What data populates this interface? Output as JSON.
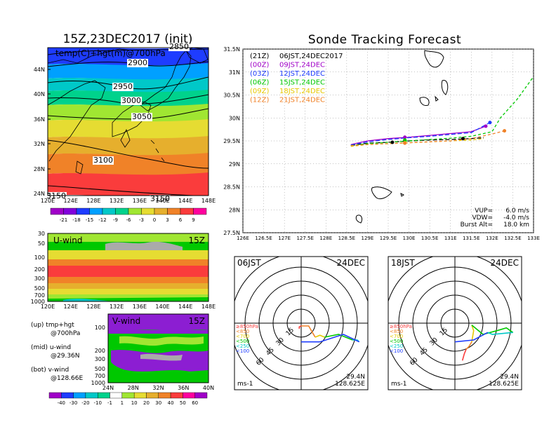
{
  "left_title": "15Z,23DEC2017 (init)",
  "right_title": "Sonde Tracking Forecast",
  "map_panel": {
    "label": "temp(C)+hgt(m)@700hPa",
    "x_ticks": [
      "120E",
      "124E",
      "128E",
      "132E",
      "136E",
      "140E",
      "144E",
      "148E"
    ],
    "y_ticks": [
      "44N",
      "40N",
      "36N",
      "32N",
      "28N",
      "24N"
    ],
    "contour_labels": [
      "2850",
      "2900",
      "2950",
      "3000",
      "3050",
      "3100",
      "3150",
      "3150"
    ],
    "colorbar_labels": [
      "-21",
      "-18",
      "-15",
      "-12",
      "-9",
      "-6",
      "-3",
      "0",
      "3",
      "6",
      "9"
    ],
    "colorbar_colors": [
      "#a000c8",
      "#8200dc",
      "#1e3cff",
      "#00a0ff",
      "#00c8c8",
      "#00d28c",
      "#a0e632",
      "#e6dc32",
      "#e6af2d",
      "#f08228",
      "#fa3c3c",
      "#ff009e"
    ]
  },
  "uwind_panel": {
    "label": "U-wind",
    "time": "15Z",
    "y_ticks": [
      "30",
      "50",
      "100",
      "200",
      "300",
      "500",
      "700",
      "1000"
    ],
    "x_ticks": [
      "120E",
      "124E",
      "128E",
      "132E",
      "136E",
      "140E",
      "144E",
      "148E"
    ]
  },
  "vwind_panel": {
    "label": "V-wind",
    "time": "15Z",
    "y_ticks": [
      "100",
      "200",
      "300",
      "500",
      "700",
      "1000"
    ],
    "x_ticks": [
      "24N",
      "28N",
      "32N",
      "36N",
      "40N"
    ]
  },
  "wind_colorbar": {
    "labels": [
      "-40",
      "-30",
      "-20",
      "-10",
      "-1",
      "1",
      "10",
      "20",
      "30",
      "40",
      "50",
      "60"
    ],
    "colors": [
      "#a000c8",
      "#1e3cff",
      "#00a0ff",
      "#00c8c8",
      "#00d28c",
      "#ffffff",
      "#a0e632",
      "#e6dc32",
      "#e6af2d",
      "#f08228",
      "#fa3c3c",
      "#ff009e",
      "#a000c8"
    ]
  },
  "notes": [
    {
      "line1": "(up) tmp+hgt",
      "line2": "@700hPa"
    },
    {
      "line1": "(mid) u-wind",
      "line2": "@29.36N"
    },
    {
      "line1": "(bot) v-wind",
      "line2": "@128.66E"
    }
  ],
  "tracking_panel": {
    "x_ticks": [
      "126E",
      "126.5E",
      "127E",
      "127.5E",
      "128E",
      "128.5E",
      "129E",
      "129.5E",
      "130E",
      "130.5E",
      "131E",
      "131.5E",
      "132E",
      "132.5E",
      "133E"
    ],
    "y_ticks": [
      "31.5N",
      "31N",
      "30.5N",
      "30N",
      "29.5N",
      "29N",
      "28.5N",
      "28N",
      "27.5N"
    ],
    "legend": [
      {
        "code": "(21Z)",
        "label": "06JST,24DEC2017",
        "color": "#000000"
      },
      {
        "code": "(00Z)",
        "label": "09JST,24DEC",
        "color": "#a000c8"
      },
      {
        "code": "(03Z)",
        "label": "12JST,24DEC",
        "color": "#1e3cff"
      },
      {
        "code": "(06Z)",
        "label": "15JST,24DEC",
        "color": "#00c800"
      },
      {
        "code": "(09Z)",
        "label": "18JST,24DEC",
        "color": "#e6c800"
      },
      {
        "code": "(12Z)",
        "label": "21JST,24DEC",
        "color": "#f08228"
      }
    ],
    "params": [
      {
        "label": "VUP=",
        "value": "6.0 m/s"
      },
      {
        "label": "VDW=",
        "value": "-4.0 m/s"
      },
      {
        "label": "Burst Alt=",
        "value": "18.0 km"
      }
    ]
  },
  "chart_data": {
    "type": "line",
    "xlabel": "",
    "ylabel": "",
    "xlim": [
      126,
      133
    ],
    "ylim": [
      27.5,
      31.5
    ],
    "series": [
      {
        "name": "(21Z) 06JST,24DEC2017",
        "color": "#000000",
        "dash": "6,3",
        "x": [
          128.6,
          129.0,
          129.5,
          130.0,
          130.5,
          131.0,
          131.5,
          131.8
        ],
        "y": [
          29.4,
          29.45,
          29.47,
          29.5,
          29.52,
          29.53,
          29.55,
          29.57
        ]
      },
      {
        "name": "(00Z) 09JST,24DEC",
        "color": "#a000c8",
        "dash": "",
        "x": [
          128.6,
          129.0,
          129.5,
          130.0,
          130.5,
          131.0,
          131.5,
          131.85
        ],
        "y": [
          29.42,
          29.5,
          29.55,
          29.58,
          29.62,
          29.66,
          29.7,
          29.82
        ]
      },
      {
        "name": "(03Z) 12JST,24DEC",
        "color": "#1e3cff",
        "dash": "6,3",
        "x": [
          128.6,
          129.0,
          129.5,
          130.0,
          130.5,
          131.0,
          131.5,
          131.95
        ],
        "y": [
          29.41,
          29.48,
          29.53,
          29.57,
          29.6,
          29.64,
          29.68,
          29.9
        ]
      },
      {
        "name": "(06Z) 15JST,24DEC",
        "color": "#00c800",
        "dash": "4,3",
        "x": [
          128.6,
          129.0,
          129.5,
          130.0,
          130.5,
          131.0,
          131.5,
          132.0,
          132.2,
          132.6,
          133.0
        ],
        "y": [
          29.4,
          29.44,
          29.47,
          29.5,
          29.53,
          29.56,
          29.6,
          29.7,
          30.0,
          30.4,
          30.9
        ]
      },
      {
        "name": "(09Z) 18JST,24DEC",
        "color": "#e6c800",
        "dash": "4,3",
        "x": [
          128.6,
          129.0,
          129.5,
          130.0,
          130.5,
          131.0,
          131.5,
          131.8
        ],
        "y": [
          29.38,
          29.42,
          29.44,
          29.46,
          29.48,
          29.5,
          29.52,
          29.55
        ]
      },
      {
        "name": "(12Z) 21JST,24DEC",
        "color": "#f08228",
        "dash": "4,3",
        "x": [
          128.6,
          129.0,
          129.5,
          130.0,
          130.5,
          131.0,
          131.5,
          132.0,
          132.3
        ],
        "y": [
          29.4,
          29.42,
          29.44,
          29.46,
          29.48,
          29.5,
          29.55,
          29.65,
          29.72
        ]
      }
    ],
    "markers": [
      {
        "color": "#000000",
        "x": 129.6,
        "y": 29.47
      },
      {
        "color": "#000000",
        "x": 131.3,
        "y": 29.55
      },
      {
        "color": "#a000c8",
        "x": 129.9,
        "y": 29.58
      },
      {
        "color": "#a000c8",
        "x": 131.85,
        "y": 29.82
      },
      {
        "color": "#1e3cff",
        "x": 131.95,
        "y": 29.9
      },
      {
        "color": "#00c800",
        "x": 129.9,
        "y": 29.52
      },
      {
        "color": "#e6c800",
        "x": 129.9,
        "y": 29.46
      },
      {
        "color": "#f08228",
        "x": 129.9,
        "y": 29.45
      },
      {
        "color": "#f08228",
        "x": 132.3,
        "y": 29.72
      }
    ]
  },
  "hodo_panels": [
    {
      "time": "06JST",
      "date": "24DEC",
      "lat": "29.4N",
      "lon": "128.625E",
      "unit": "ms-1",
      "ring_labels": [
        "15",
        "30",
        "45",
        "60"
      ],
      "levels": [
        {
          "label": "≥850hPa",
          "color": "#fa3c3c"
        },
        {
          "label": "<850",
          "color": "#f08228"
        },
        {
          "label": "<700",
          "color": "#e6c800"
        },
        {
          "label": "<500",
          "color": "#00c800"
        },
        {
          "label": "<250",
          "color": "#00c8c8"
        },
        {
          "label": "<100",
          "color": "#1e3cff"
        }
      ],
      "segments": [
        {
          "color": "#fa3c3c",
          "u": [
            -2,
            -2,
            0
          ],
          "v": [
            -6,
            -4,
            -3
          ]
        },
        {
          "color": "#f08228",
          "u": [
            0,
            8,
            12,
            15
          ],
          "v": [
            -3,
            -3,
            -10,
            -15
          ]
        },
        {
          "color": "#e6c800",
          "u": [
            15,
            20,
            25
          ],
          "v": [
            -15,
            -13,
            -15
          ]
        },
        {
          "color": "#00c800",
          "u": [
            25,
            40,
            55
          ],
          "v": [
            -15,
            -12,
            -18
          ]
        },
        {
          "color": "#00c8c8",
          "u": [
            55,
            60,
            62
          ],
          "v": [
            -18,
            -18,
            -20
          ]
        },
        {
          "color": "#1e3cff",
          "u": [
            62,
            45,
            20,
            0
          ],
          "v": [
            -20,
            -12,
            -20,
            -20
          ]
        }
      ]
    },
    {
      "time": "18JST",
      "date": "24DEC",
      "lat": "29.4N",
      "lon": "128.625E",
      "unit": "ms-1",
      "ring_labels": [
        "15",
        "30",
        "45",
        "60"
      ],
      "levels": [
        {
          "label": "≥850hPa",
          "color": "#fa3c3c"
        },
        {
          "label": "<850",
          "color": "#f08228"
        },
        {
          "label": "<700",
          "color": "#e6c800"
        },
        {
          "label": "<500",
          "color": "#00c800"
        },
        {
          "label": "<250",
          "color": "#00c8c8"
        },
        {
          "label": "<100",
          "color": "#1e3cff"
        }
      ],
      "segments": [
        {
          "color": "#fa3c3c",
          "u": [
            8,
            10,
            12
          ],
          "v": [
            -40,
            -33,
            -28
          ]
        },
        {
          "color": "#f08228",
          "u": [
            12,
            15,
            18
          ],
          "v": [
            -28,
            -25,
            -20
          ]
        },
        {
          "color": "#e6c800",
          "u": [
            18,
            20,
            18
          ],
          "v": [
            -20,
            -8,
            -2
          ]
        },
        {
          "color": "#00c800",
          "u": [
            18,
            30,
            45,
            55,
            62
          ],
          "v": [
            -2,
            -12,
            -8,
            -5,
            -10
          ]
        },
        {
          "color": "#00c8c8",
          "u": [
            62,
            40,
            35
          ],
          "v": [
            -10,
            -12,
            -10
          ]
        },
        {
          "color": "#1e3cff",
          "u": [
            35,
            20,
            0
          ],
          "v": [
            -10,
            -18,
            -20
          ]
        }
      ]
    }
  ]
}
